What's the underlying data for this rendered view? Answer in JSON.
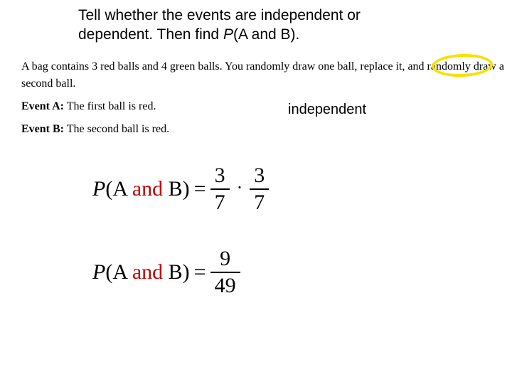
{
  "prompt": {
    "line1": "Tell whether the events are independent or",
    "line2_a": "dependent.  Then find ",
    "line2_b": "P",
    "line2_c": "(A and B)."
  },
  "problem": {
    "scenario_a": "A bag contains 3 red balls and 4 green balls. You randomly draw one ball, ",
    "scenario_highlight": "replace it",
    "scenario_b": ", and randomly draw a second ball.",
    "eventA_label": "Event A:",
    "eventA_text": " The first ball is red.",
    "eventB_label": "Event B:",
    "eventB_text": " The second ball is red."
  },
  "answer": "independent",
  "equations": {
    "label_P": "P",
    "label_open": "(A ",
    "label_and": "and",
    "label_close": " B)",
    "eq_sign": " = ",
    "eq1": {
      "n1": "3",
      "d1": "7",
      "dot": "·",
      "n2": "3",
      "d2": "7"
    },
    "eq2": {
      "n": "9",
      "d": "49"
    }
  },
  "style": {
    "highlight_color": "#f9e000",
    "red_color": "#c00000",
    "background": "#ffffff",
    "prompt_fontsize": 21,
    "problem_fontsize": 16,
    "answer_fontsize": 20,
    "equation_fontsize": 30
  }
}
